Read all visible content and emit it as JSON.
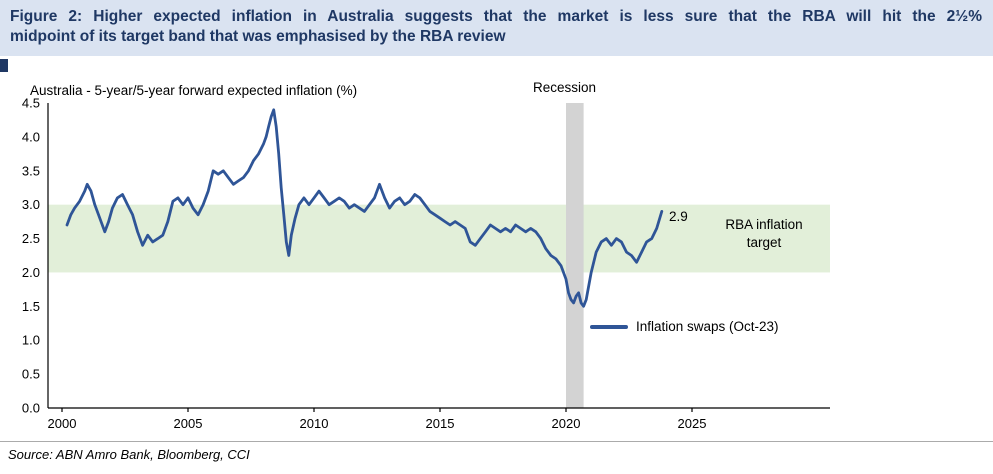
{
  "header": {
    "title_lines": [
      "Figure 2: Higher expected inflation in Australia suggests that the market is less sure that the RBA will hit the 2½%",
      "midpoint of its target band that was emphasised by the RBA review"
    ]
  },
  "chart": {
    "subtitle": "Australia - 5-year/5-year forward expected inflation (%)",
    "recession_label": "Recession",
    "last_value_label": "2.9",
    "band_label": "RBA inflation target",
    "legend_label": "Inflation swaps (Oct-23)"
  },
  "source": "Source: ABN Amro Bank, Bloomberg, CCI",
  "colors": {
    "header_bg": "#dae3f1",
    "header_text": "#1f3864",
    "axis": "#000000"
  },
  "chart_data": {
    "type": "line",
    "title": "Australia - 5-year/5-year forward expected inflation (%)",
    "x_base": 2000,
    "xlim": [
      2000,
      2030
    ],
    "ylim": [
      0,
      4.5
    ],
    "y_tick_step": 0.5,
    "x_ticks": [
      2000,
      2005,
      2010,
      2015,
      2020,
      2025
    ],
    "grid": false,
    "legend_position": "inside-bottom-right",
    "target_band": {
      "from": 2.0,
      "to": 3.0,
      "label": "RBA inflation target",
      "color": "#e2efd9"
    },
    "recession_band": {
      "from": 2020.0,
      "to": 2020.7,
      "label": "Recession",
      "color": "#d3d3d3"
    },
    "last_point_label": "2.9",
    "series": [
      {
        "name": "Inflation swaps (Oct-23)",
        "color": "#2f5597",
        "points": [
          [
            2000.2,
            2.7
          ],
          [
            2000.35,
            2.85
          ],
          [
            2000.5,
            2.95
          ],
          [
            2000.7,
            3.05
          ],
          [
            2000.9,
            3.2
          ],
          [
            2001.0,
            3.3
          ],
          [
            2001.15,
            3.2
          ],
          [
            2001.3,
            3.0
          ],
          [
            2001.5,
            2.8
          ],
          [
            2001.7,
            2.6
          ],
          [
            2001.85,
            2.75
          ],
          [
            2002.0,
            2.95
          ],
          [
            2002.2,
            3.1
          ],
          [
            2002.4,
            3.15
          ],
          [
            2002.6,
            3.0
          ],
          [
            2002.8,
            2.85
          ],
          [
            2003.0,
            2.6
          ],
          [
            2003.2,
            2.4
          ],
          [
            2003.4,
            2.55
          ],
          [
            2003.6,
            2.45
          ],
          [
            2003.8,
            2.5
          ],
          [
            2004.0,
            2.55
          ],
          [
            2004.2,
            2.75
          ],
          [
            2004.4,
            3.05
          ],
          [
            2004.6,
            3.1
          ],
          [
            2004.8,
            3.0
          ],
          [
            2005.0,
            3.1
          ],
          [
            2005.2,
            2.95
          ],
          [
            2005.4,
            2.85
          ],
          [
            2005.6,
            3.0
          ],
          [
            2005.8,
            3.2
          ],
          [
            2006.0,
            3.5
          ],
          [
            2006.2,
            3.45
          ],
          [
            2006.4,
            3.5
          ],
          [
            2006.6,
            3.4
          ],
          [
            2006.8,
            3.3
          ],
          [
            2007.0,
            3.35
          ],
          [
            2007.2,
            3.4
          ],
          [
            2007.4,
            3.5
          ],
          [
            2007.6,
            3.65
          ],
          [
            2007.8,
            3.75
          ],
          [
            2008.0,
            3.9
          ],
          [
            2008.1,
            4.0
          ],
          [
            2008.2,
            4.15
          ],
          [
            2008.3,
            4.3
          ],
          [
            2008.4,
            4.4
          ],
          [
            2008.5,
            4.15
          ],
          [
            2008.6,
            3.75
          ],
          [
            2008.7,
            3.25
          ],
          [
            2008.8,
            2.85
          ],
          [
            2008.9,
            2.45
          ],
          [
            2009.0,
            2.25
          ],
          [
            2009.1,
            2.55
          ],
          [
            2009.25,
            2.8
          ],
          [
            2009.4,
            3.0
          ],
          [
            2009.6,
            3.1
          ],
          [
            2009.8,
            3.0
          ],
          [
            2010.0,
            3.1
          ],
          [
            2010.2,
            3.2
          ],
          [
            2010.4,
            3.1
          ],
          [
            2010.6,
            3.0
          ],
          [
            2010.8,
            3.05
          ],
          [
            2011.0,
            3.1
          ],
          [
            2011.2,
            3.05
          ],
          [
            2011.4,
            2.95
          ],
          [
            2011.6,
            3.0
          ],
          [
            2011.8,
            2.95
          ],
          [
            2012.0,
            2.9
          ],
          [
            2012.2,
            3.0
          ],
          [
            2012.4,
            3.1
          ],
          [
            2012.6,
            3.3
          ],
          [
            2012.8,
            3.1
          ],
          [
            2013.0,
            2.95
          ],
          [
            2013.2,
            3.05
          ],
          [
            2013.4,
            3.1
          ],
          [
            2013.6,
            3.0
          ],
          [
            2013.8,
            3.05
          ],
          [
            2014.0,
            3.15
          ],
          [
            2014.2,
            3.1
          ],
          [
            2014.4,
            3.0
          ],
          [
            2014.6,
            2.9
          ],
          [
            2014.8,
            2.85
          ],
          [
            2015.0,
            2.8
          ],
          [
            2015.2,
            2.75
          ],
          [
            2015.4,
            2.7
          ],
          [
            2015.6,
            2.75
          ],
          [
            2015.8,
            2.7
          ],
          [
            2016.0,
            2.65
          ],
          [
            2016.2,
            2.45
          ],
          [
            2016.4,
            2.4
          ],
          [
            2016.6,
            2.5
          ],
          [
            2016.8,
            2.6
          ],
          [
            2017.0,
            2.7
          ],
          [
            2017.2,
            2.65
          ],
          [
            2017.4,
            2.6
          ],
          [
            2017.6,
            2.65
          ],
          [
            2017.8,
            2.6
          ],
          [
            2018.0,
            2.7
          ],
          [
            2018.2,
            2.65
          ],
          [
            2018.4,
            2.6
          ],
          [
            2018.6,
            2.65
          ],
          [
            2018.8,
            2.6
          ],
          [
            2019.0,
            2.5
          ],
          [
            2019.2,
            2.35
          ],
          [
            2019.4,
            2.25
          ],
          [
            2019.6,
            2.2
          ],
          [
            2019.8,
            2.1
          ],
          [
            2020.0,
            1.9
          ],
          [
            2020.1,
            1.7
          ],
          [
            2020.2,
            1.6
          ],
          [
            2020.3,
            1.55
          ],
          [
            2020.4,
            1.65
          ],
          [
            2020.5,
            1.7
          ],
          [
            2020.6,
            1.55
          ],
          [
            2020.7,
            1.5
          ],
          [
            2020.8,
            1.6
          ],
          [
            2020.9,
            1.8
          ],
          [
            2021.0,
            2.0
          ],
          [
            2021.2,
            2.3
          ],
          [
            2021.4,
            2.45
          ],
          [
            2021.6,
            2.5
          ],
          [
            2021.8,
            2.4
          ],
          [
            2022.0,
            2.5
          ],
          [
            2022.2,
            2.45
          ],
          [
            2022.4,
            2.3
          ],
          [
            2022.6,
            2.25
          ],
          [
            2022.8,
            2.15
          ],
          [
            2023.0,
            2.3
          ],
          [
            2023.2,
            2.45
          ],
          [
            2023.4,
            2.5
          ],
          [
            2023.6,
            2.65
          ],
          [
            2023.8,
            2.9
          ]
        ]
      }
    ]
  }
}
